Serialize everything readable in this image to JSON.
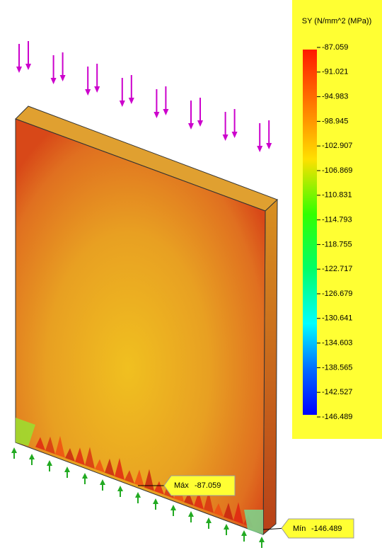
{
  "legend": {
    "title": "SY (N/mm^2 (MPa))",
    "labels": [
      "-87.059",
      "-91.021",
      "-94.983",
      "-98.945",
      "-102.907",
      "-106.869",
      "-110.831",
      "-114.793",
      "-118.755",
      "-122.717",
      "-126.679",
      "-130.641",
      "-134.603",
      "-138.565",
      "-142.527",
      "-146.489"
    ]
  },
  "annotations": {
    "max": {
      "label": "Máx",
      "value": "-87.059"
    },
    "min": {
      "label": "Mín",
      "value": "-146.489"
    }
  }
}
